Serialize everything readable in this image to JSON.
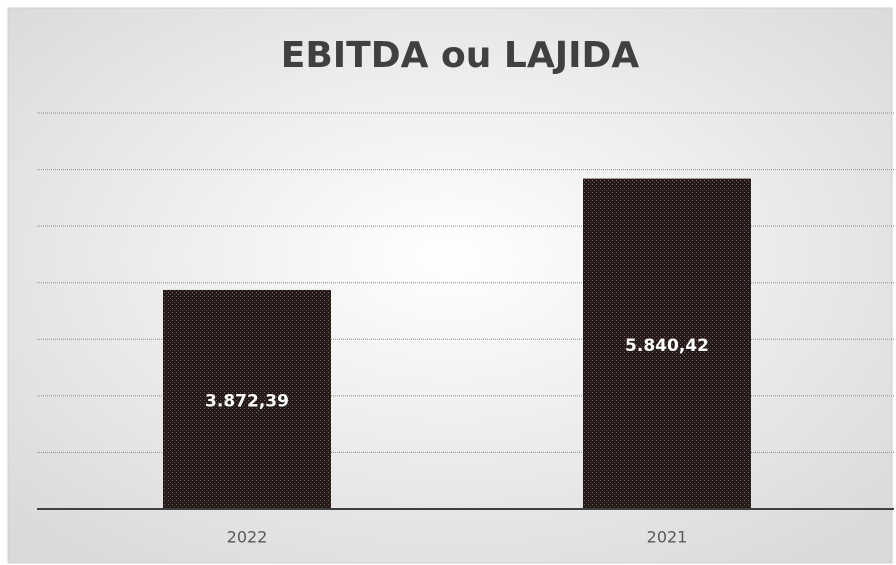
{
  "chart_data": {
    "type": "bar",
    "title": "EBITDA ou LAJIDA",
    "categories": [
      "2022",
      "2021"
    ],
    "values": [
      3872.39,
      5840.42
    ],
    "value_labels": [
      "3.872,39",
      "5.840,42"
    ],
    "color": "#2a1f1f",
    "ylim": [
      0,
      7000
    ],
    "yticks": [
      0,
      1000,
      2000,
      3000,
      4000,
      5000,
      6000,
      7000
    ],
    "grid": true
  }
}
